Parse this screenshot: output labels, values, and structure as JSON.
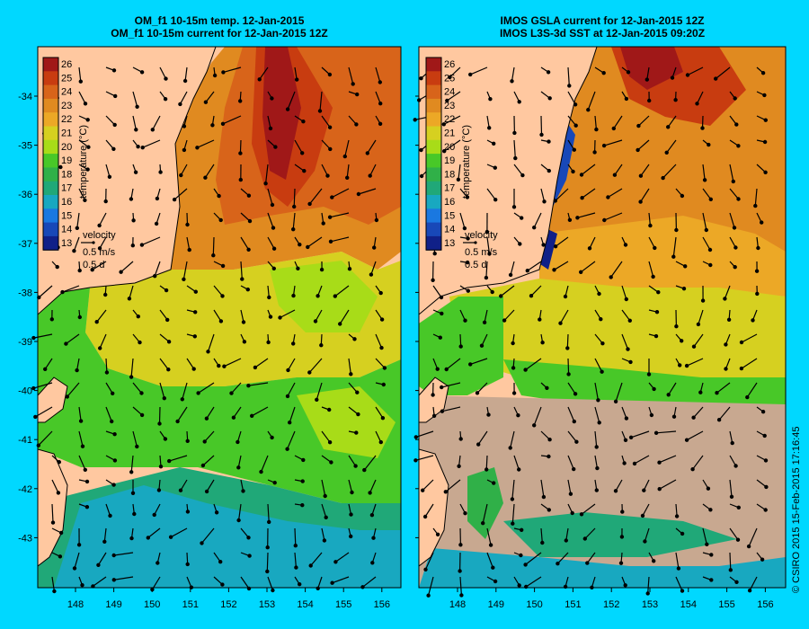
{
  "left_panel": {
    "title_line1": "OM_f1 10-15m temp. 12-Jan-2015",
    "title_line2": "OM_f1 10-15m current for 12-Jan-2015 12Z"
  },
  "right_panel": {
    "title_line1": "IMOS GSLA current for 12-Jan-2015 12Z",
    "title_line2": "IMOS L3S-3d SST at 12-Jan-2015 09:20Z"
  },
  "colorbar": {
    "label": "temperature (°C)",
    "ticks": [
      "26",
      "25",
      "24",
      "23",
      "22",
      "21",
      "20",
      "19",
      "18",
      "17",
      "16",
      "15",
      "14",
      "13"
    ],
    "colors": [
      "#a01818",
      "#c83c10",
      "#d8641a",
      "#e08a20",
      "#eca826",
      "#d6d020",
      "#a8dc18",
      "#48c828",
      "#30b048",
      "#20a878",
      "#18a8c0",
      "#1a78e0",
      "#1848b8",
      "#102088"
    ]
  },
  "velocity_key": {
    "label": "velocity",
    "speed": "0.5 m/s",
    "duration": "0.5 d"
  },
  "axes": {
    "lat_labels": [
      "-34",
      "-35",
      "-36",
      "-37",
      "-38",
      "-39",
      "-40",
      "-41",
      "-42",
      "-43"
    ],
    "lon_labels": [
      "148",
      "149",
      "150",
      "151",
      "152",
      "153",
      "154",
      "155",
      "156"
    ]
  },
  "credit": "© CSIRO 2015   15-Feb-2015 17:16:45",
  "colors": {
    "background": "#00d8ff",
    "land": "#ffc8a0",
    "missing_data": "#c8a890"
  }
}
